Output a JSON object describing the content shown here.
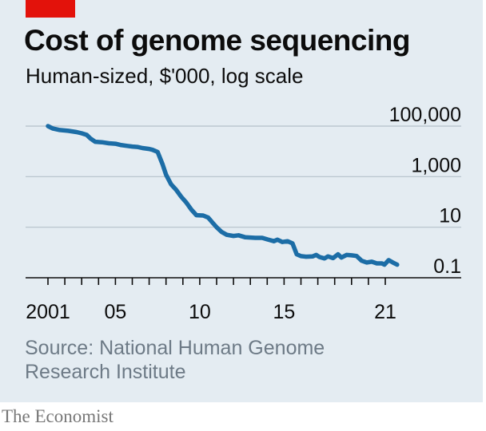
{
  "header": {
    "title": "Cost of genome sequencing",
    "subtitle": "Human-sized, $'000, log scale"
  },
  "footer": {
    "source": "Source: National Human Genome Research Institute",
    "brand": "The Economist"
  },
  "colors": {
    "background": "#e4ecf2",
    "line": "#1c6da6",
    "accent_tag": "#e3120b",
    "gridline": "#b5c0c9"
  },
  "chart_data": {
    "type": "line",
    "title": "Cost of genome sequencing",
    "subtitle": "Human-sized, $'000, log scale",
    "y_scale": "log",
    "ylim": [
      0.1,
      100000
    ],
    "y_ticks": [
      {
        "value": 100000,
        "label": "100,000"
      },
      {
        "value": 1000,
        "label": "1,000"
      },
      {
        "value": 10,
        "label": "10"
      },
      {
        "value": 0.1,
        "label": "0.1"
      }
    ],
    "xlim": [
      2001,
      2022
    ],
    "x_tick_labels": [
      {
        "value": 2001,
        "label": "2001"
      },
      {
        "value": 2005,
        "label": "05"
      },
      {
        "value": 2010,
        "label": "10"
      },
      {
        "value": 2015,
        "label": "15"
      },
      {
        "value": 2021,
        "label": "21"
      }
    ],
    "x_minor_ticks": [
      2001,
      2002,
      2003,
      2004,
      2005,
      2006,
      2007,
      2008,
      2009,
      2010,
      2011,
      2012,
      2013,
      2014,
      2015,
      2016,
      2017,
      2018,
      2019,
      2020,
      2021
    ],
    "grid": "horizontal",
    "series": [
      {
        "points": [
          [
            2001.0,
            100000
          ],
          [
            2001.3,
            80000
          ],
          [
            2001.7,
            70000
          ],
          [
            2002.2,
            65000
          ],
          [
            2002.7,
            58000
          ],
          [
            2003.0,
            52000
          ],
          [
            2003.3,
            45000
          ],
          [
            2003.5,
            33000
          ],
          [
            2003.8,
            24000
          ],
          [
            2004.2,
            23000
          ],
          [
            2004.6,
            21000
          ],
          [
            2005.0,
            20000
          ],
          [
            2005.3,
            18000
          ],
          [
            2005.7,
            16500
          ],
          [
            2006.0,
            15500
          ],
          [
            2006.3,
            15000
          ],
          [
            2006.6,
            13500
          ],
          [
            2007.0,
            12500
          ],
          [
            2007.2,
            11500
          ],
          [
            2007.5,
            9500
          ],
          [
            2007.8,
            3000
          ],
          [
            2008.0,
            1200
          ],
          [
            2008.3,
            500
          ],
          [
            2008.6,
            300
          ],
          [
            2008.9,
            160
          ],
          [
            2009.2,
            95
          ],
          [
            2009.5,
            50
          ],
          [
            2009.8,
            30
          ],
          [
            2010.2,
            29
          ],
          [
            2010.5,
            24
          ],
          [
            2010.8,
            14
          ],
          [
            2011.0,
            10
          ],
          [
            2011.3,
            6.5
          ],
          [
            2011.6,
            5.0
          ],
          [
            2012.0,
            4.5
          ],
          [
            2012.3,
            4.8
          ],
          [
            2012.7,
            4.0
          ],
          [
            2013.0,
            3.9
          ],
          [
            2013.3,
            3.8
          ],
          [
            2013.7,
            3.8
          ],
          [
            2014.0,
            3.3
          ],
          [
            2014.4,
            2.8
          ],
          [
            2014.6,
            3.2
          ],
          [
            2014.9,
            2.6
          ],
          [
            2015.2,
            2.8
          ],
          [
            2015.5,
            2.3
          ],
          [
            2015.75,
            0.85
          ],
          [
            2016.0,
            0.72
          ],
          [
            2016.3,
            0.68
          ],
          [
            2016.7,
            0.7
          ],
          [
            2016.9,
            0.8
          ],
          [
            2017.1,
            0.66
          ],
          [
            2017.4,
            0.58
          ],
          [
            2017.6,
            0.7
          ],
          [
            2017.9,
            0.6
          ],
          [
            2018.2,
            0.85
          ],
          [
            2018.4,
            0.63
          ],
          [
            2018.7,
            0.8
          ],
          [
            2019.0,
            0.77
          ],
          [
            2019.3,
            0.73
          ],
          [
            2019.6,
            0.47
          ],
          [
            2019.9,
            0.4
          ],
          [
            2020.2,
            0.43
          ],
          [
            2020.5,
            0.37
          ],
          [
            2020.8,
            0.37
          ],
          [
            2020.95,
            0.33
          ],
          [
            2021.2,
            0.5
          ],
          [
            2021.45,
            0.4
          ],
          [
            2021.7,
            0.33
          ]
        ]
      }
    ],
    "source": "Source: National Human Genome Research Institute"
  }
}
